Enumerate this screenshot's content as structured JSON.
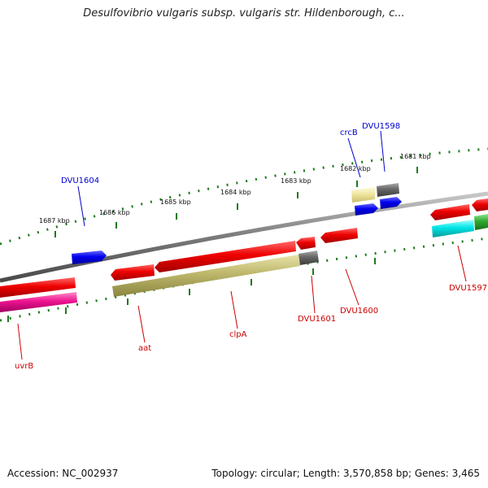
{
  "title": "Desulfovibrio vulgaris subsp. vulgaris str. Hildenborough, c...",
  "footer": {
    "accession": "Accession: NC_002937",
    "summary": "Topology: circular; Length: 3,570,858 bp; Genes: 3,465"
  },
  "colors": {
    "backbone": "#7a7a7a",
    "tick": "#1f7a1f",
    "label_forward": "#0000cc",
    "label_reverse": "#cc0000"
  },
  "ticks": [
    "1687 kbp",
    "1686 kbp",
    "1685 kbp",
    "1684 kbp",
    "1683 kbp",
    "1682 kbp",
    "1681 kbp"
  ],
  "genes": [
    {
      "name": "DVU1604",
      "strand": "forward"
    },
    {
      "name": "crcB",
      "strand": "forward"
    },
    {
      "name": "DVU1598",
      "strand": "forward"
    },
    {
      "name": "uvrB",
      "strand": "reverse"
    },
    {
      "name": "aat",
      "strand": "reverse"
    },
    {
      "name": "clpA",
      "strand": "reverse"
    },
    {
      "name": "DVU1601",
      "strand": "reverse"
    },
    {
      "name": "DVU1600",
      "strand": "reverse"
    },
    {
      "name": "DVU1597",
      "strand": "reverse"
    }
  ]
}
